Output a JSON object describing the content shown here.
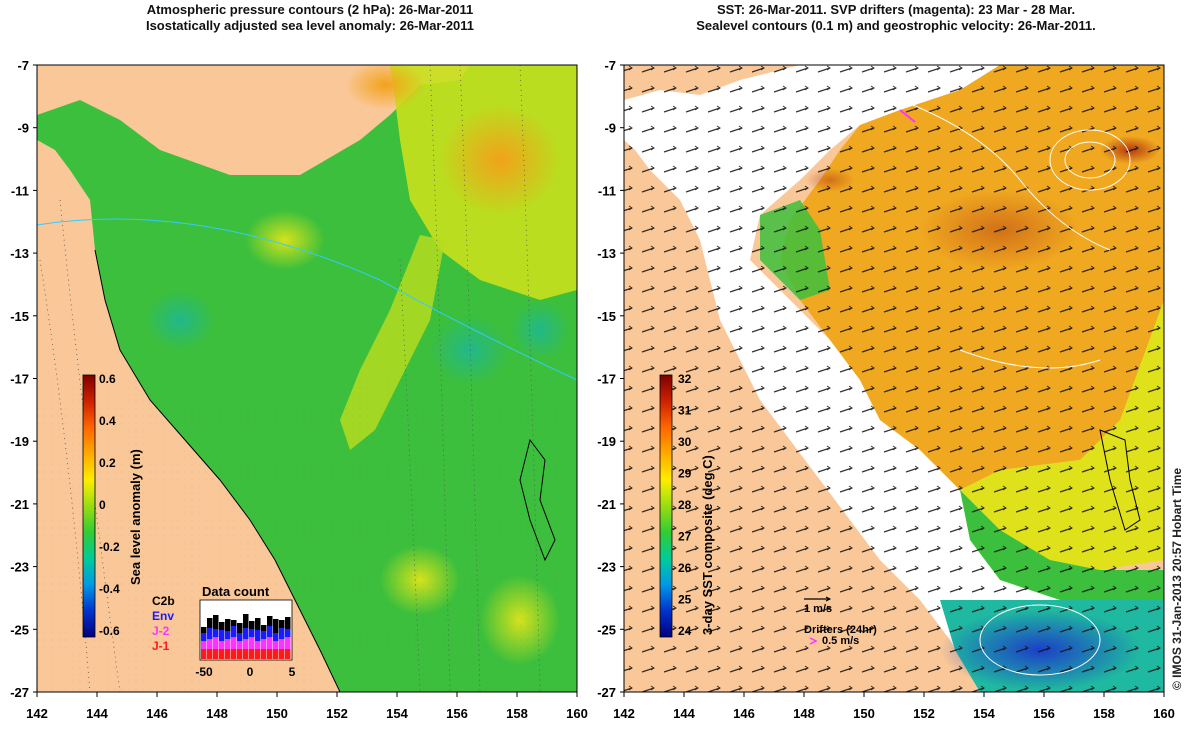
{
  "left_panel": {
    "title_line1": "Atmospheric pressure contours (2 hPa): 26-Mar-2011",
    "title_line2": "Isostatically adjusted sea level anomaly: 26-Mar-2011",
    "y_ticks": [
      "-7",
      "-9",
      "-11",
      "-13",
      "-15",
      "-17",
      "-19",
      "-21",
      "-23",
      "-25",
      "-27"
    ],
    "x_ticks": [
      "142",
      "144",
      "146",
      "148",
      "150",
      "152",
      "154",
      "156",
      "158",
      "160"
    ],
    "colorbar": {
      "label": "Sea level anomaly (m)",
      "ticks": [
        "0.6",
        "0.4",
        "0.2",
        "0",
        "-0.2",
        "-0.4",
        "-0.6"
      ],
      "colors": [
        "#00007f",
        "#0033cc",
        "#0099e6",
        "#00cc99",
        "#33cc33",
        "#99dd11",
        "#ffee00",
        "#ffaa00",
        "#ff6600",
        "#cc2200",
        "#7f0000"
      ]
    },
    "data_count": {
      "title": "Data count",
      "legend": [
        {
          "label": "C2b",
          "color": "#000000"
        },
        {
          "label": "Env",
          "color": "#1a1aff"
        },
        {
          "label": "J-2",
          "color": "#ff33ff"
        },
        {
          "label": "J-1",
          "color": "#ff1a1a"
        }
      ],
      "x_ticks": [
        "-50",
        "0",
        "5"
      ]
    }
  },
  "right_panel": {
    "title_line1": "SST: 26-Mar-2011. SVP drifters (magenta): 23 Mar - 28 Mar.",
    "title_line2": "Sealevel contours (0.1 m) and geostrophic velocity: 26-Mar-2011.",
    "y_ticks": [
      "-7",
      "-9",
      "-11",
      "-13",
      "-15",
      "-17",
      "-19",
      "-21",
      "-23",
      "-25",
      "-27"
    ],
    "x_ticks": [
      "142",
      "144",
      "146",
      "148",
      "150",
      "152",
      "154",
      "156",
      "158",
      "160"
    ],
    "colorbar": {
      "label": "3-day SST composite (deg C)",
      "ticks": [
        "32",
        "31",
        "30",
        "29",
        "28",
        "27",
        "26",
        "25",
        "24"
      ],
      "colors": [
        "#00007f",
        "#0033cc",
        "#0099e6",
        "#00cc99",
        "#33cc33",
        "#99dd11",
        "#ffee00",
        "#ffaa00",
        "#ff6600",
        "#cc2200",
        "#7f0000"
      ]
    },
    "velocity_scale": "1 m/s",
    "drifters_label": "Drifters (24hr)",
    "drifters_scale": "0.5 m/s"
  },
  "credit": "© IMOS 31-Jan-2013 20:57 Hobart Time",
  "colors": {
    "land": "#fac898",
    "ocean_green": "#3cbf3c",
    "warm_orange": "#f0a820"
  }
}
